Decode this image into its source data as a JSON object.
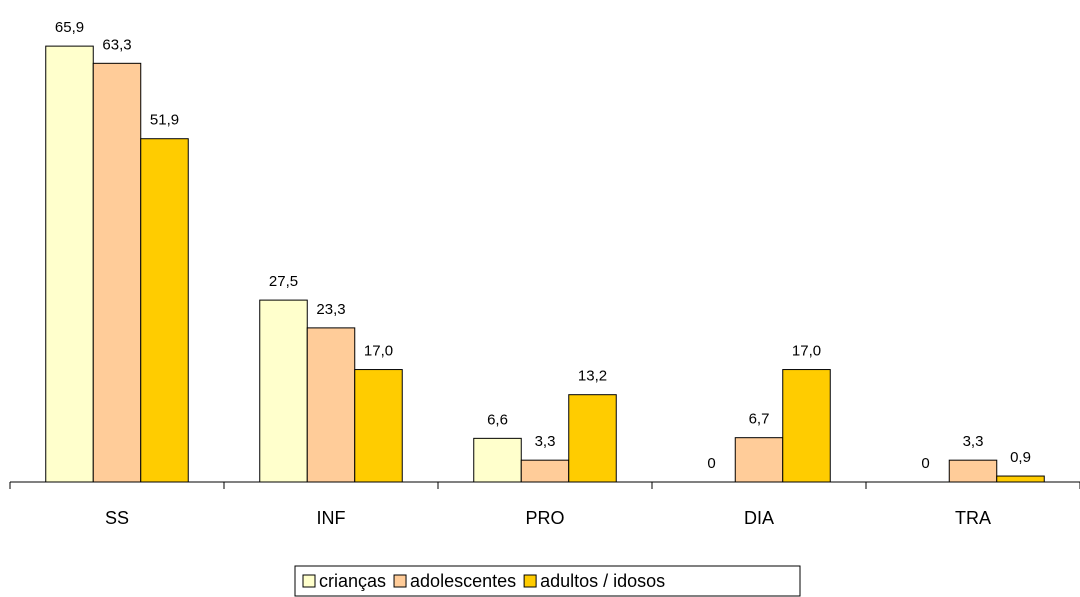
{
  "chart_data": {
    "type": "bar",
    "categories": [
      "SS",
      "INF",
      "PRO",
      "DIA",
      "TRA"
    ],
    "series": [
      {
        "name": "crianças",
        "color": "#ffffcc",
        "values": [
          65.9,
          27.5,
          6.6,
          0,
          0
        ],
        "value_labels": [
          "65,9",
          "27,5",
          "6,6",
          "0",
          "0"
        ]
      },
      {
        "name": "adolescentes",
        "color": "#ffcc99",
        "values": [
          63.3,
          23.3,
          3.3,
          6.7,
          3.3
        ],
        "value_labels": [
          "63,3",
          "23,3",
          "3,3",
          "6,7",
          "3,3"
        ]
      },
      {
        "name": "adultos / idosos",
        "color": "#ffcc00",
        "values": [
          51.9,
          17.0,
          13.2,
          17.0,
          0.9
        ],
        "value_labels": [
          "51,9",
          "17,0",
          "13,2",
          "17,0",
          "0,9"
        ]
      }
    ],
    "ylim": [
      0,
      70
    ],
    "legend": "bottom"
  }
}
